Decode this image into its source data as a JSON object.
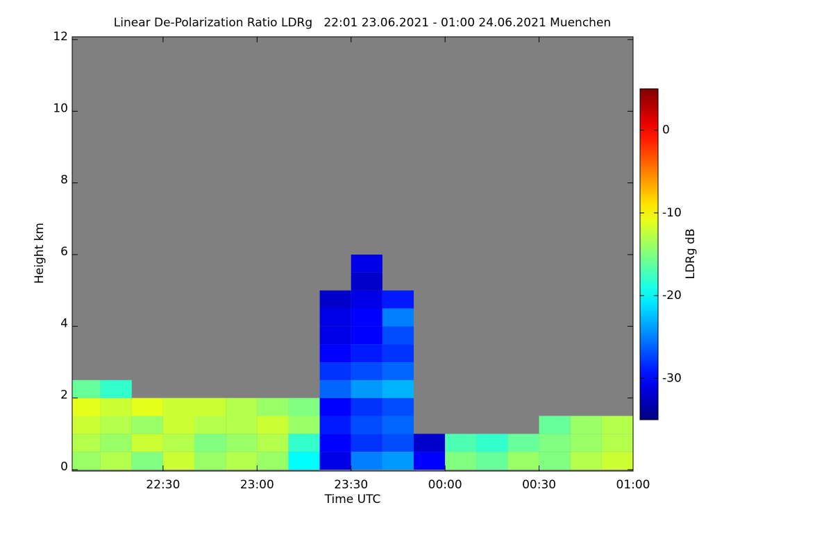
{
  "chart_data": {
    "type": "heatmap",
    "title": "Linear De-Polarization Ratio LDRg   22:01 23.06.2021 - 01:00 24.06.2021 Muenchen",
    "x_label": "Time UTC",
    "y_label": "Height km",
    "colorbar_label": "LDRg dB",
    "colormap": "jet",
    "nodata_color": "#808080",
    "xlim": [
      22.0167,
      25.0
    ],
    "xticks": [
      {
        "value": 22.5,
        "label": "22:30"
      },
      {
        "value": 23.0,
        "label": "23:00"
      },
      {
        "value": 23.5,
        "label": "23:30"
      },
      {
        "value": 24.0,
        "label": "00:00"
      },
      {
        "value": 24.5,
        "label": "00:30"
      },
      {
        "value": 25.0,
        "label": "01:00"
      }
    ],
    "ylim": [
      0,
      12
    ],
    "yticks": [
      0,
      2,
      4,
      6,
      8,
      10,
      12
    ],
    "clim": [
      -35,
      5
    ],
    "cticks": [
      -30,
      -20,
      -10,
      0
    ],
    "x": [
      22.0833,
      22.25,
      22.4167,
      22.5833,
      22.75,
      22.9167,
      23.0833,
      23.25,
      23.4167,
      23.5833,
      23.75,
      23.9167,
      24.0833,
      24.25,
      24.4167,
      24.5833,
      24.75,
      24.9167
    ],
    "y": [
      0.25,
      0.75,
      1.25,
      1.75,
      2.25,
      2.75,
      3.25,
      3.75,
      4.25,
      4.75,
      5.25,
      5.75
    ],
    "z": [
      [
        -14,
        -13,
        -15,
        -12,
        -14,
        -13,
        -14,
        -20,
        -31,
        -25,
        -24,
        -30,
        -15,
        -16,
        -14,
        -15,
        -13,
        -12
      ],
      [
        -13,
        -14,
        -12,
        -13,
        -15,
        -14,
        -13,
        -18,
        -30,
        -28,
        -27,
        -32,
        -17,
        -18,
        -16,
        -15,
        -14,
        -13
      ],
      [
        -12,
        -13,
        -14,
        -12,
        -13,
        -13,
        -12,
        -14,
        -29,
        -27,
        -26,
        null,
        null,
        null,
        null,
        -16,
        -14,
        -13
      ],
      [
        -11,
        -12,
        -11,
        -12,
        -12,
        -13,
        -14,
        -15,
        -30,
        -28,
        -27,
        null,
        null,
        null,
        null,
        null,
        null,
        null
      ],
      [
        -16,
        -18,
        null,
        null,
        null,
        null,
        null,
        null,
        -26,
        -24,
        -23,
        null,
        null,
        null,
        null,
        null,
        null,
        null
      ],
      [
        null,
        null,
        null,
        null,
        null,
        null,
        null,
        null,
        -28,
        -27,
        -26,
        null,
        null,
        null,
        null,
        null,
        null,
        null
      ],
      [
        null,
        null,
        null,
        null,
        null,
        null,
        null,
        null,
        -30,
        -29,
        -28,
        null,
        null,
        null,
        null,
        null,
        null,
        null
      ],
      [
        null,
        null,
        null,
        null,
        null,
        null,
        null,
        null,
        -31,
        -30,
        -27,
        null,
        null,
        null,
        null,
        null,
        null,
        null
      ],
      [
        null,
        null,
        null,
        null,
        null,
        null,
        null,
        null,
        -31,
        -30,
        -25,
        null,
        null,
        null,
        null,
        null,
        null,
        null
      ],
      [
        null,
        null,
        null,
        null,
        null,
        null,
        null,
        null,
        -32,
        -31,
        -29,
        null,
        null,
        null,
        null,
        null,
        null,
        null
      ],
      [
        null,
        null,
        null,
        null,
        null,
        null,
        null,
        null,
        null,
        -32,
        null,
        null,
        null,
        null,
        null,
        null,
        null,
        null
      ],
      [
        null,
        null,
        null,
        null,
        null,
        null,
        null,
        null,
        null,
        -31,
        null,
        null,
        null,
        null,
        null,
        null,
        null,
        null
      ]
    ]
  }
}
